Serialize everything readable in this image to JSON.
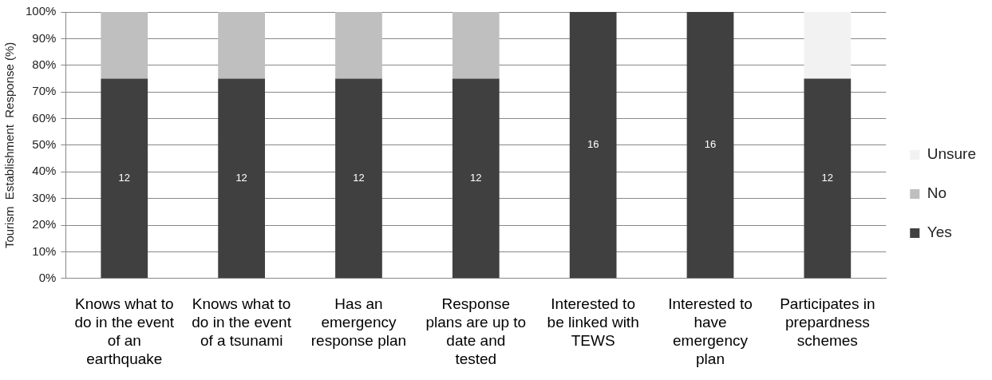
{
  "chart_data": {
    "type": "bar",
    "stacked": true,
    "ylabel": "Tourism  Establishment  Response (%)",
    "categories": [
      "Knows what to do in the event of an earthquake",
      "Knows what to do in the event of a tsunami",
      "Has an emergency response plan",
      "Response plans are up to date and tested",
      "Interested to be linked with TEWS",
      "Interested to have emergency plan",
      "Participates in prepardness schemes"
    ],
    "series": [
      {
        "name": "Yes",
        "color": "#404040",
        "values": [
          75,
          75,
          75,
          75,
          100,
          100,
          75
        ]
      },
      {
        "name": "No",
        "color": "#bfbfbf",
        "values": [
          25,
          25,
          25,
          25,
          null,
          null,
          null
        ]
      },
      {
        "name": "Unsure",
        "color": "#f2f2f2",
        "values": [
          null,
          null,
          null,
          null,
          null,
          null,
          25
        ]
      }
    ],
    "ylim": [
      0,
      100
    ],
    "yticks": [
      {
        "value": 0,
        "label": "0%"
      },
      {
        "value": 10,
        "label": "10%"
      },
      {
        "value": 20,
        "label": "20%"
      },
      {
        "value": 30,
        "label": "30%"
      },
      {
        "value": 40,
        "label": "40%"
      },
      {
        "value": 50,
        "label": "50%"
      },
      {
        "value": 60,
        "label": "60%"
      },
      {
        "value": 70,
        "label": "70%"
      },
      {
        "value": 80,
        "label": "80%"
      },
      {
        "value": 90,
        "label": "90%"
      },
      {
        "value": 100,
        "label": "100%"
      }
    ],
    "annotations": [
      "12",
      "12",
      "12",
      "12",
      "16",
      "16",
      "12"
    ],
    "grid": "y",
    "legend": "right"
  }
}
